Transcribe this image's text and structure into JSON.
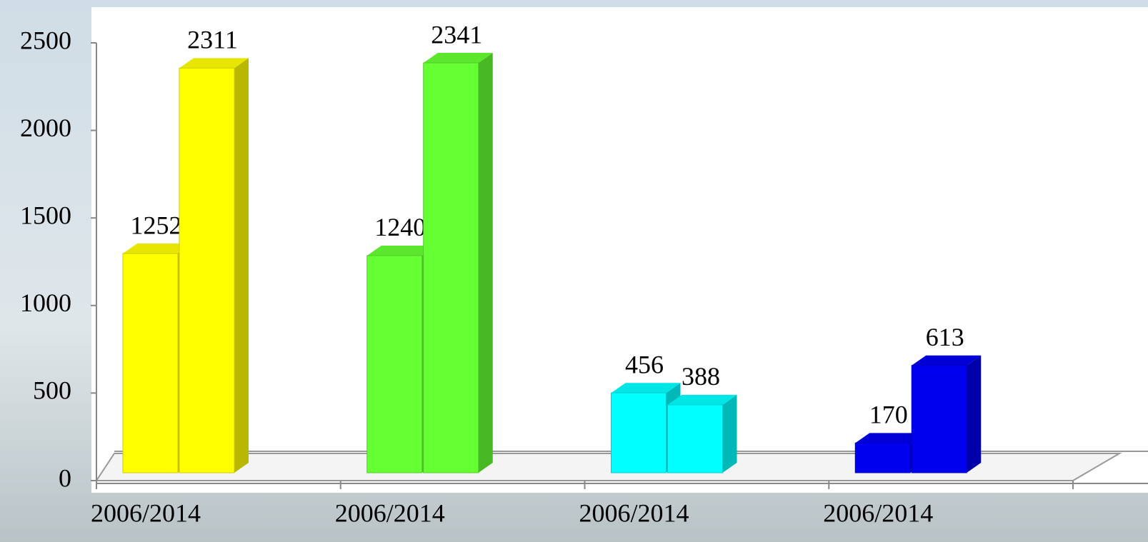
{
  "chart_data": {
    "type": "bar3d",
    "categories": [
      "2006/2014",
      "2006/2014",
      "2006/2014",
      "2006/2014"
    ],
    "groups": [
      {
        "values": [
          1252,
          2311
        ],
        "color": "#ffff00"
      },
      {
        "values": [
          1240,
          2341
        ],
        "color": "#66ff33"
      },
      {
        "values": [
          456,
          388
        ],
        "color": "#00ffff"
      },
      {
        "values": [
          170,
          613
        ],
        "color": "#0000ee"
      }
    ],
    "ylim": [
      0,
      2500
    ],
    "yticks": [
      0,
      500,
      1000,
      1500,
      2000,
      2500
    ]
  }
}
